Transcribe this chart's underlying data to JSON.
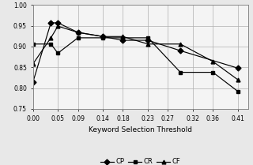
{
  "CP_x": [
    0.0,
    0.036,
    0.05,
    0.09,
    0.14,
    0.18,
    0.23,
    0.295,
    0.41
  ],
  "CP_y": [
    0.814,
    0.957,
    0.957,
    0.934,
    0.924,
    0.915,
    0.915,
    0.89,
    0.848
  ],
  "CR_x": [
    0.0,
    0.036,
    0.05,
    0.09,
    0.14,
    0.18,
    0.23,
    0.295,
    0.36,
    0.41
  ],
  "CR_y": [
    0.906,
    0.906,
    0.884,
    0.921,
    0.921,
    0.921,
    0.921,
    0.838,
    0.838,
    0.792
  ],
  "CF_x": [
    0.0,
    0.036,
    0.05,
    0.09,
    0.14,
    0.18,
    0.23,
    0.295,
    0.36,
    0.41
  ],
  "CF_y": [
    0.858,
    0.921,
    0.949,
    0.934,
    0.924,
    0.924,
    0.906,
    0.906,
    0.864,
    0.82
  ],
  "xlabel": "Keyword Selection Threshold",
  "ylim": [
    0.75,
    1.0
  ],
  "xlim": [
    0.0,
    0.43
  ],
  "yticks": [
    0.75,
    0.8,
    0.85,
    0.9,
    0.95,
    1.0
  ],
  "xtick_labels": [
    "0.00",
    "0.05",
    "0.09",
    "0.14",
    "0.18",
    "0.23",
    "0.27",
    "0.32",
    "0.36",
    "0.41"
  ],
  "xtick_vals": [
    0.0,
    0.05,
    0.09,
    0.14,
    0.18,
    0.23,
    0.27,
    0.32,
    0.36,
    0.41
  ],
  "legend_labels": [
    "CP",
    "CR",
    "CF"
  ],
  "line_color": "#000000",
  "bg_color": "#f0f0f0"
}
